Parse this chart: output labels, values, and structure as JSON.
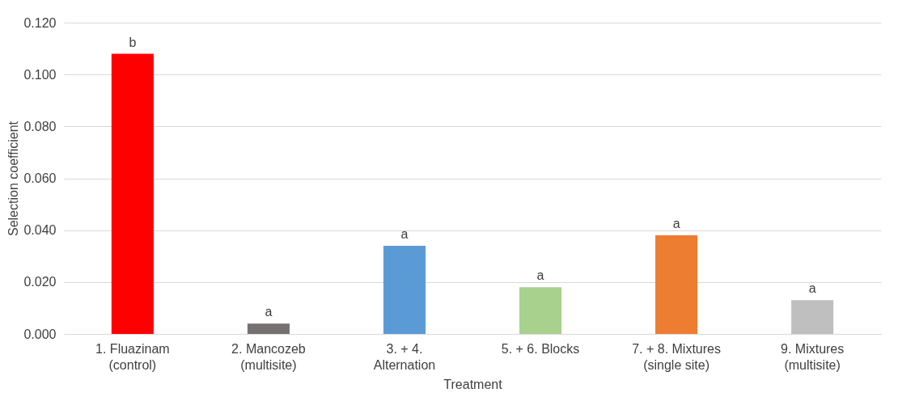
{
  "chart_data": {
    "type": "bar",
    "xlabel": "Treatment",
    "ylabel": "Selection coefficient",
    "categories": [
      "1. Fluazinam\n(control)",
      "2. Mancozeb\n(multisite)",
      "3. + 4.\nAlternation",
      "5. + 6. Blocks",
      "7. + 8. Mixtures\n(single site)",
      "9. Mixtures\n(multisite)"
    ],
    "values": [
      0.108,
      0.004,
      0.034,
      0.018,
      0.038,
      0.013
    ],
    "colors": [
      "#ff0000",
      "#767171",
      "#5b9bd5",
      "#a9d18e",
      "#ed7d31",
      "#bfbfbf"
    ],
    "value_labels": [
      "b",
      "a",
      "a",
      "a",
      "a",
      "a"
    ],
    "ylim": [
      0,
      0.12
    ],
    "yticks": [
      {
        "value": 0,
        "label": "0.000"
      },
      {
        "value": 0.02,
        "label": "0.020"
      },
      {
        "value": 0.04,
        "label": "0.040"
      },
      {
        "value": 0.06,
        "label": "0.060"
      },
      {
        "value": 0.08,
        "label": "0.080"
      },
      {
        "value": 0.1,
        "label": "0.100"
      },
      {
        "value": 0.12,
        "label": "0.120"
      }
    ],
    "grid": "y"
  }
}
